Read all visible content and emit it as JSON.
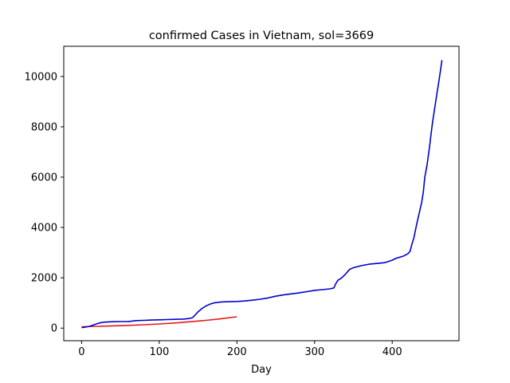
{
  "chart_data": {
    "type": "line",
    "title": "confirmed Cases in Vietnam, sol=3669",
    "xlabel": "Day",
    "ylabel": "",
    "xlim": [
      -23,
      486
    ],
    "ylim": [
      -500,
      11200
    ],
    "xticks": [
      0,
      100,
      200,
      300,
      400
    ],
    "yticks": [
      0,
      2000,
      4000,
      6000,
      8000,
      10000
    ],
    "grid": false,
    "colors": {
      "actual": "#0000cd",
      "model": "#e31a1c"
    },
    "series": [
      {
        "name": "",
        "color": "#e31a1c",
        "x": [
          0,
          20,
          40,
          60,
          80,
          100,
          120,
          140,
          160,
          180,
          200
        ],
        "y": [
          55,
          70,
          90,
          110,
          135,
          165,
          205,
          255,
          310,
          375,
          450
        ]
      },
      {
        "name": "",
        "color": "#0000cd",
        "x": [
          0,
          5,
          10,
          15,
          20,
          25,
          30,
          40,
          50,
          60,
          65,
          70,
          80,
          90,
          100,
          110,
          120,
          130,
          135,
          140,
          143,
          147,
          150,
          155,
          160,
          165,
          170,
          175,
          180,
          190,
          200,
          210,
          220,
          230,
          240,
          250,
          260,
          270,
          280,
          290,
          300,
          310,
          320,
          325,
          327,
          330,
          335,
          340,
          345,
          350,
          360,
          370,
          380,
          390,
          400,
          405,
          410,
          415,
          418,
          420,
          423,
          425,
          428,
          430,
          432,
          435,
          438,
          440,
          442,
          445,
          448,
          450,
          452,
          455,
          458,
          460,
          462,
          464
        ],
        "y": [
          20,
          40,
          70,
          120,
          180,
          220,
          240,
          255,
          260,
          265,
          280,
          300,
          310,
          320,
          330,
          340,
          350,
          360,
          370,
          390,
          420,
          550,
          650,
          780,
          880,
          950,
          1000,
          1020,
          1040,
          1050,
          1060,
          1080,
          1110,
          1150,
          1200,
          1270,
          1320,
          1360,
          1400,
          1450,
          1500,
          1530,
          1560,
          1600,
          1750,
          1900,
          2000,
          2150,
          2330,
          2400,
          2480,
          2540,
          2570,
          2600,
          2700,
          2780,
          2820,
          2870,
          2920,
          2950,
          3050,
          3300,
          3600,
          3900,
          4200,
          4600,
          5000,
          5400,
          6000,
          6500,
          7200,
          7700,
          8200,
          8800,
          9400,
          9800,
          10200,
          10650
        ]
      }
    ]
  }
}
